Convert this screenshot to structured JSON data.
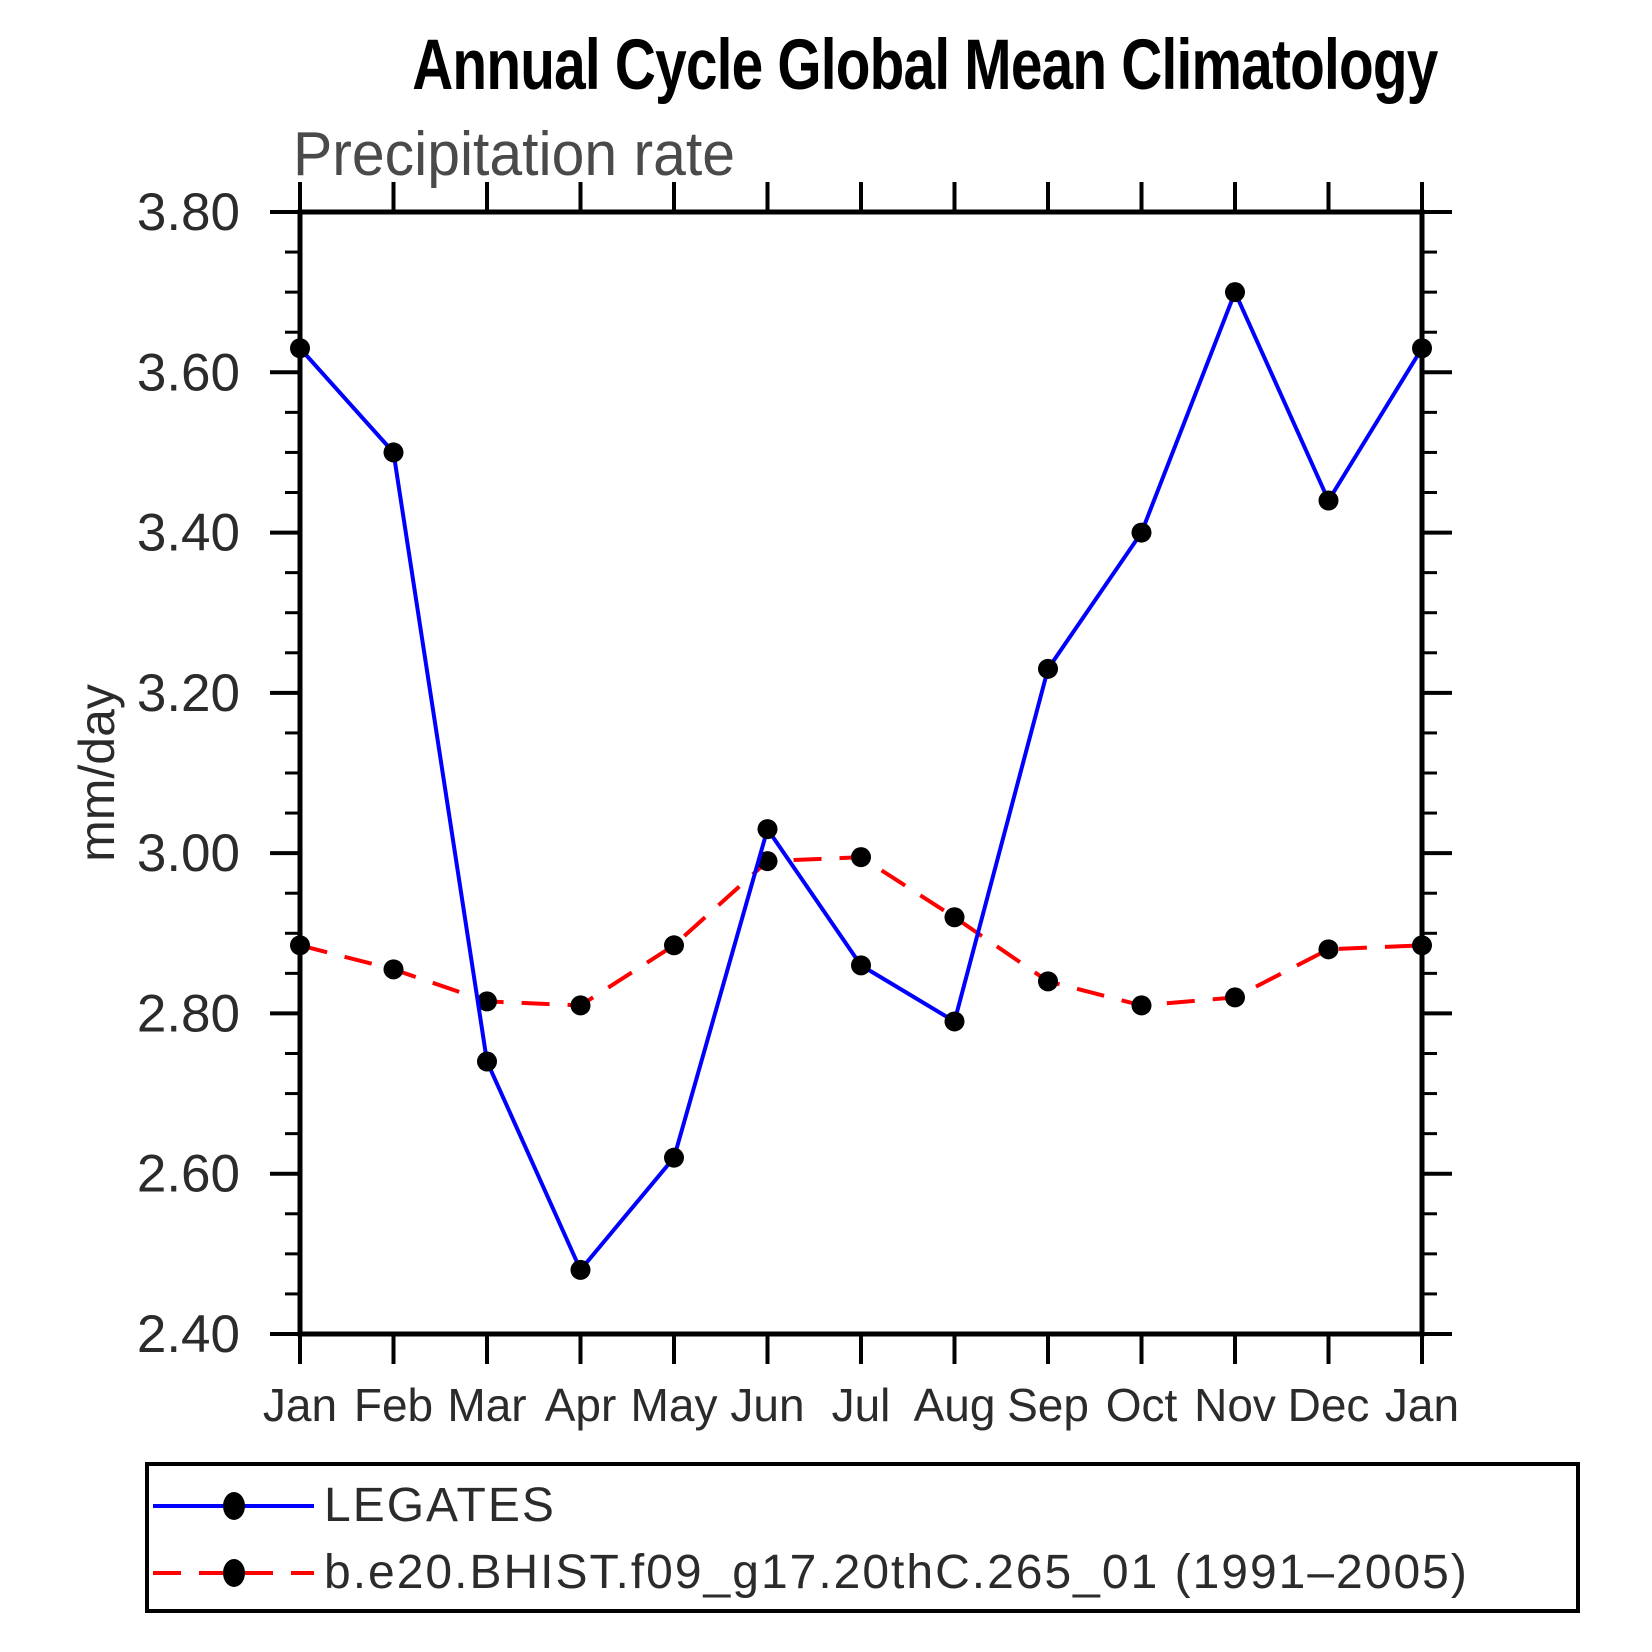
{
  "chart_data": {
    "type": "line",
    "title": "Annual Cycle Global Mean Climatology",
    "subtitle": "Precipitation rate",
    "ylabel": "mm/day",
    "ylim": [
      2.4,
      3.8
    ],
    "ytick_step": 0.2,
    "yminor_step": 0.05,
    "ytick_labels": [
      "2.40",
      "2.60",
      "2.80",
      "3.00",
      "3.20",
      "3.40",
      "3.60",
      "3.80"
    ],
    "categories": [
      "Jan",
      "Feb",
      "Mar",
      "Apr",
      "May",
      "Jun",
      "Jul",
      "Aug",
      "Sep",
      "Oct",
      "Nov",
      "Dec",
      "Jan"
    ],
    "grid": false,
    "legend_position": "bottom",
    "axis_color": "#000000",
    "marker_color": "#000000",
    "series": [
      {
        "name": "LEGATES",
        "color": "#0000ff",
        "line_style": "solid",
        "marker": "filled-circle",
        "values": [
          3.63,
          3.5,
          2.74,
          2.48,
          2.62,
          3.03,
          2.86,
          2.79,
          3.23,
          3.4,
          3.7,
          3.44,
          3.63
        ]
      },
      {
        "name": "b.e20.BHIST.f09_g17.20thC.265_01 (1991–2005)",
        "color": "#ff0000",
        "line_style": "dashed",
        "marker": "filled-circle",
        "values": [
          2.885,
          2.855,
          2.815,
          2.81,
          2.885,
          2.99,
          2.995,
          2.92,
          2.84,
          2.81,
          2.82,
          2.88,
          2.885
        ]
      }
    ]
  }
}
